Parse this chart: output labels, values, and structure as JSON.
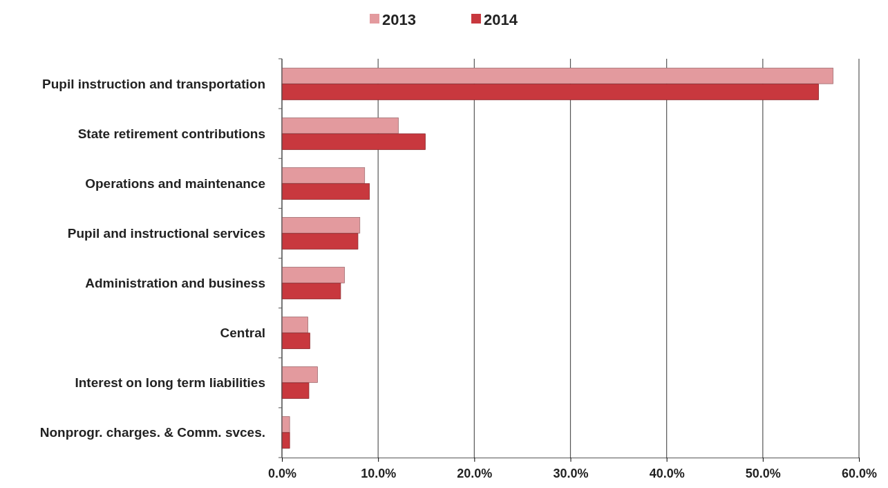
{
  "chart_data": {
    "type": "bar",
    "orientation": "horizontal",
    "categories": [
      "Pupil instruction and transportation",
      "State retirement contributions",
      "Operations and maintenance",
      "Pupil and instructional services",
      "Administration and business",
      "Central",
      "Interest on long term liabilities",
      "Nonprogr. charges. & Comm. svces."
    ],
    "series": [
      {
        "name": "2013",
        "color": "#e39a9e",
        "values": [
          57.3,
          12.1,
          8.6,
          8.1,
          6.5,
          2.7,
          3.7,
          0.8
        ]
      },
      {
        "name": "2014",
        "color": "#c8383e",
        "values": [
          55.8,
          14.9,
          9.1,
          7.9,
          6.1,
          2.9,
          2.8,
          0.8
        ]
      }
    ],
    "xlim": [
      0,
      60
    ],
    "xticks": [
      {
        "value": 0,
        "label": "0.0%"
      },
      {
        "value": 10,
        "label": "10.0%"
      },
      {
        "value": 20,
        "label": "20.0%"
      },
      {
        "value": 30,
        "label": "30.0%"
      },
      {
        "value": 40,
        "label": "40.0%"
      },
      {
        "value": 50,
        "label": "50.0%"
      },
      {
        "value": 60,
        "label": "60.0%"
      }
    ],
    "grid": "x",
    "legend": "top"
  }
}
